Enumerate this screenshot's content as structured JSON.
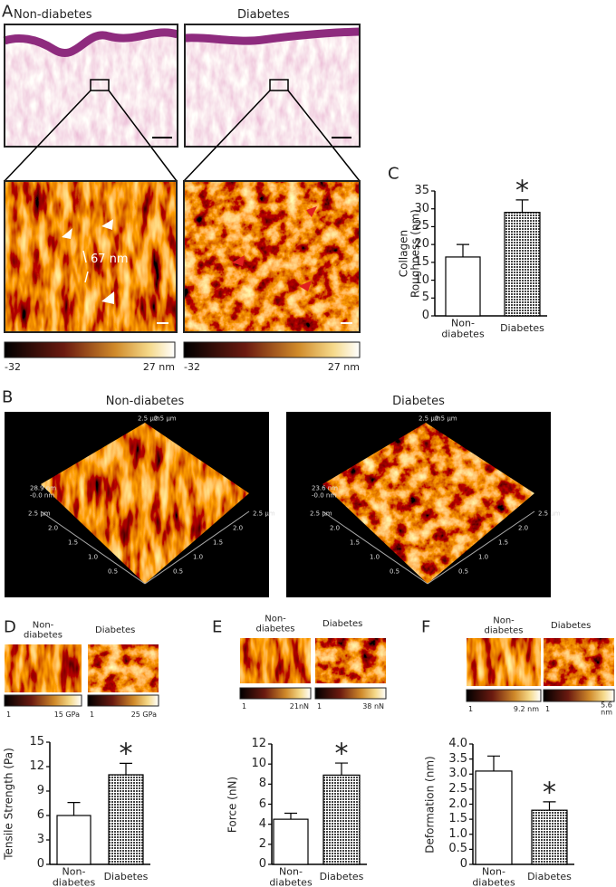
{
  "panel_labels": [
    "A",
    "B",
    "C",
    "D",
    "E",
    "F"
  ],
  "panel_a": {
    "titles": [
      "Non-diabetes",
      "Diabetes"
    ],
    "annotation": "67 nm",
    "colorbars": [
      [
        "-32",
        "27 nm"
      ],
      [
        "-32",
        "27 nm"
      ]
    ]
  },
  "panel_b": {
    "titles": [
      "Non-diabetes",
      "Diabetes"
    ],
    "height_labels": [
      [
        "28.9 nm",
        "-0.0 nm"
      ],
      [
        "23.6 nm",
        "-0.0 nm"
      ]
    ],
    "axis_labels": [
      "2.5 µm",
      "2.0",
      "1.5",
      "1.0",
      "0.5"
    ]
  },
  "small_panels": [
    {
      "titles": [
        "Non-\ndiabetes",
        "Diabetes"
      ],
      "colorbars": [
        [
          "1",
          "15 GPa"
        ],
        [
          "1",
          "25 GPa"
        ]
      ]
    },
    {
      "titles": [
        "Non-\ndiabetes",
        "Diabetes"
      ],
      "colorbars": [
        [
          "1",
          "21nN"
        ],
        [
          "1",
          "38 nN"
        ]
      ]
    },
    {
      "titles": [
        "Non-\ndiabetes",
        "Diabetes"
      ],
      "colorbars": [
        [
          "1",
          "9.2 nm"
        ],
        [
          "1",
          "5.6 nm"
        ]
      ]
    }
  ],
  "chart_data": [
    {
      "type": "bar",
      "ylabel": "Collagen\nRoughness (nm)",
      "categories": [
        "Non-\ndiabetes",
        "Diabetes"
      ],
      "values": [
        16.5,
        29
      ],
      "errors": [
        3.5,
        3.5
      ],
      "fills": [
        "#ffffff",
        "dots"
      ],
      "annotation": "*",
      "ylim": [
        0,
        35
      ],
      "yticks": [
        0,
        5,
        10,
        15,
        20,
        25,
        30,
        35
      ]
    },
    {
      "type": "bar",
      "ylabel": "Tensile Strength (Pa)",
      "categories": [
        "Non-\ndiabetes",
        "Diabetes"
      ],
      "values": [
        6.0,
        11.0
      ],
      "errors": [
        1.6,
        1.4
      ],
      "fills": [
        "#ffffff",
        "dots"
      ],
      "annotation": "*",
      "ylim": [
        0,
        15
      ],
      "yticks": [
        0,
        3,
        6,
        9,
        12,
        15
      ]
    },
    {
      "type": "bar",
      "ylabel": "Force (nN)",
      "categories": [
        "Non-\ndiabetes",
        "Diabetes"
      ],
      "values": [
        4.5,
        8.9
      ],
      "errors": [
        0.6,
        1.2
      ],
      "fills": [
        "#ffffff",
        "dots"
      ],
      "annotation": "*",
      "ylim": [
        0,
        12
      ],
      "yticks": [
        0,
        2,
        4,
        6,
        8,
        10,
        12
      ]
    },
    {
      "type": "bar",
      "ylabel": "Deformation (nm)",
      "categories": [
        "Non-\ndiabetes",
        "Diabetes"
      ],
      "values": [
        3.1,
        1.8
      ],
      "errors": [
        0.5,
        0.28
      ],
      "fills": [
        "#ffffff",
        "dots"
      ],
      "annotation": "*",
      "ylim": [
        0,
        4
      ],
      "yticks": [
        0,
        0.5,
        {
          "value": 1,
          "label": "1.0"
        },
        1.5,
        {
          "value": 2,
          "label": "2.0"
        },
        2.5,
        {
          "value": 3,
          "label": "3.0"
        },
        3.5,
        {
          "value": 4,
          "label": "4.0"
        }
      ]
    }
  ]
}
